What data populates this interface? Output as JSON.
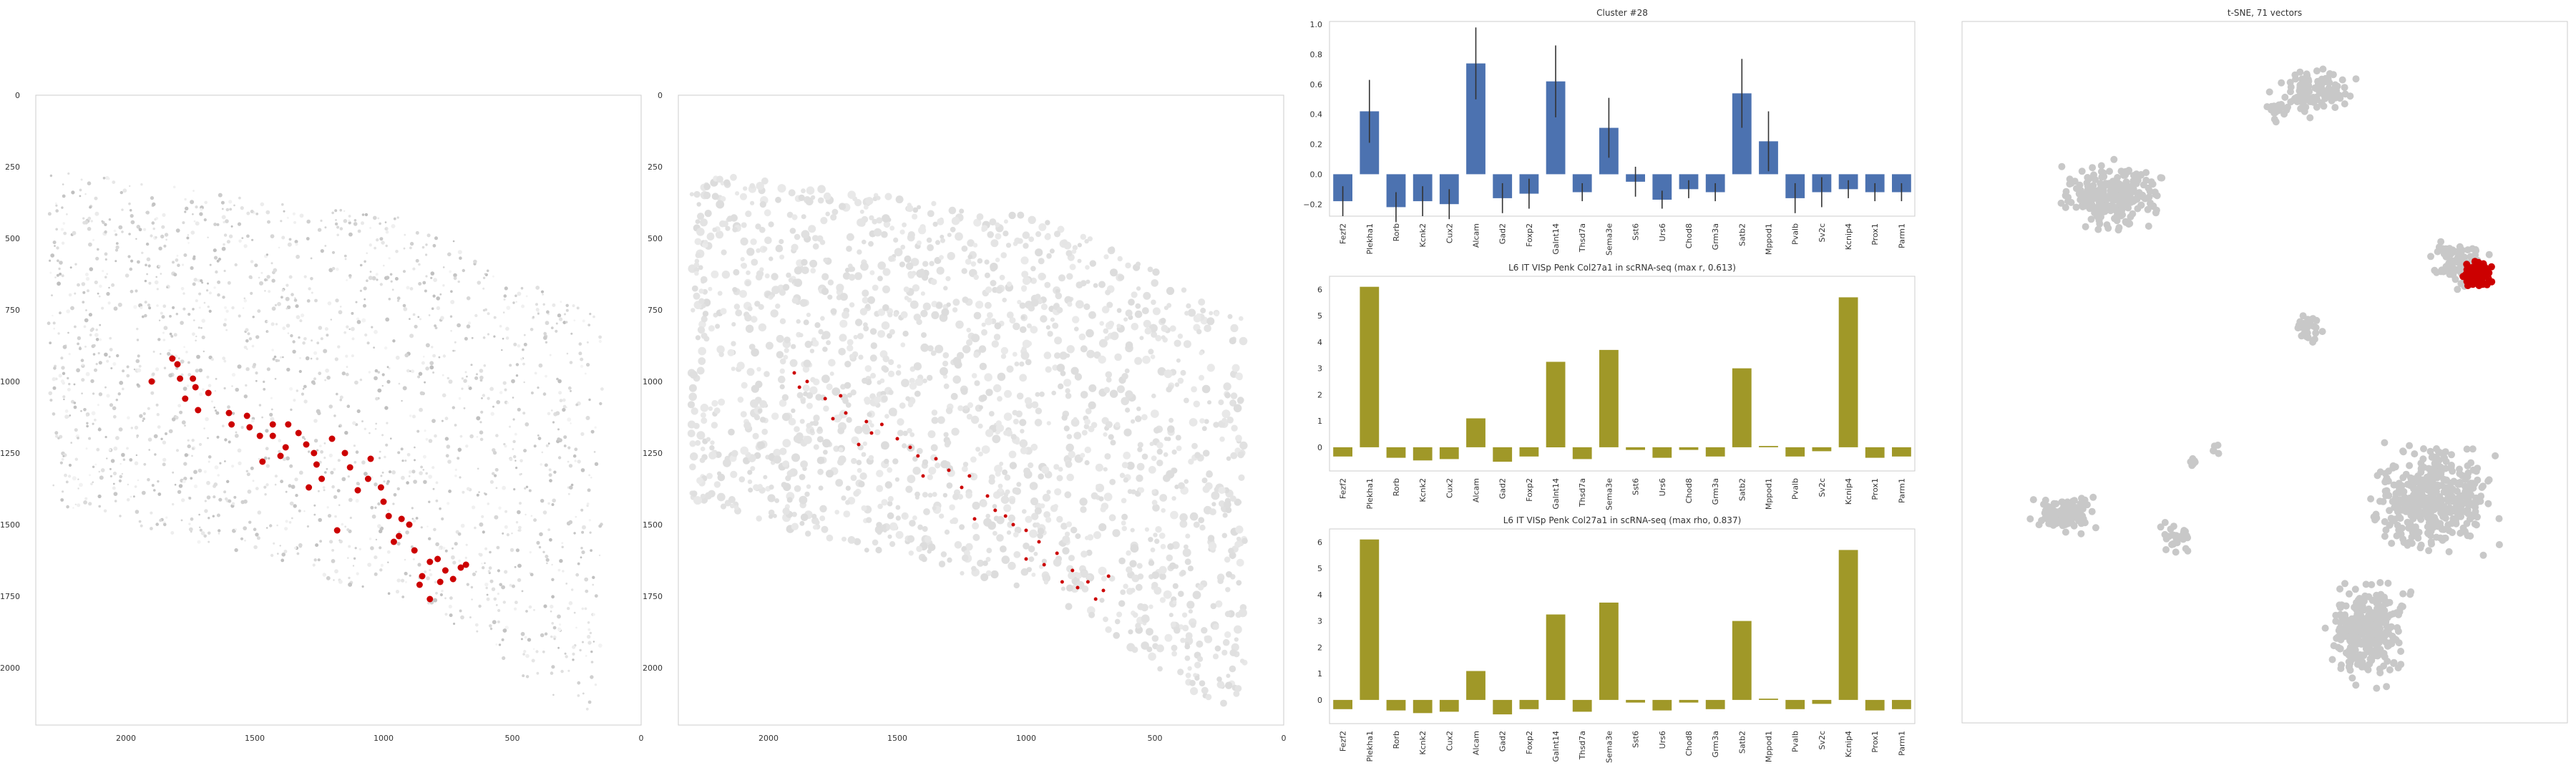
{
  "chart_data": [
    {
      "type": "scatter",
      "id": "tissue-left",
      "title": "",
      "xlim": [
        2350,
        0
      ],
      "ylim": [
        2200,
        0
      ],
      "x_ticks": [
        "2000",
        "1500",
        "1000",
        "500",
        "0"
      ],
      "y_ticks": [
        "0",
        "250",
        "500",
        "750",
        "1000",
        "1250",
        "1500",
        "1750",
        "2000"
      ],
      "x_tick_values": [
        2000,
        1500,
        1000,
        500,
        0
      ],
      "y_tick_values": [
        0,
        250,
        500,
        750,
        1000,
        1250,
        1500,
        1750,
        2000
      ],
      "background_points": "gray shaded cells across tissue section",
      "highlight_color": "#cc0000",
      "highlight_points": [
        [
          1900,
          1000
        ],
        [
          1820,
          920
        ],
        [
          1800,
          940
        ],
        [
          1790,
          990
        ],
        [
          1740,
          990
        ],
        [
          1730,
          1020
        ],
        [
          1770,
          1060
        ],
        [
          1720,
          1100
        ],
        [
          1680,
          1040
        ],
        [
          1600,
          1110
        ],
        [
          1590,
          1150
        ],
        [
          1530,
          1120
        ],
        [
          1520,
          1160
        ],
        [
          1480,
          1190
        ],
        [
          1430,
          1150
        ],
        [
          1430,
          1190
        ],
        [
          1400,
          1260
        ],
        [
          1380,
          1230
        ],
        [
          1370,
          1150
        ],
        [
          1330,
          1180
        ],
        [
          1300,
          1220
        ],
        [
          1270,
          1250
        ],
        [
          1260,
          1290
        ],
        [
          1240,
          1340
        ],
        [
          1200,
          1200
        ],
        [
          1150,
          1250
        ],
        [
          1130,
          1300
        ],
        [
          1100,
          1380
        ],
        [
          1060,
          1340
        ],
        [
          1050,
          1270
        ],
        [
          1010,
          1370
        ],
        [
          1000,
          1420
        ],
        [
          980,
          1470
        ],
        [
          960,
          1560
        ],
        [
          940,
          1540
        ],
        [
          930,
          1480
        ],
        [
          900,
          1500
        ],
        [
          880,
          1590
        ],
        [
          860,
          1710
        ],
        [
          850,
          1680
        ],
        [
          820,
          1630
        ],
        [
          790,
          1620
        ],
        [
          780,
          1700
        ],
        [
          760,
          1660
        ],
        [
          730,
          1690
        ],
        [
          700,
          1650
        ],
        [
          680,
          1640
        ],
        [
          820,
          1760
        ],
        [
          1180,
          1520
        ],
        [
          1290,
          1370
        ],
        [
          1470,
          1280
        ]
      ]
    },
    {
      "type": "scatter",
      "id": "tissue-right",
      "title": "",
      "xlim": [
        2350,
        0
      ],
      "ylim": [
        2200,
        0
      ],
      "x_ticks": [
        "2000",
        "1500",
        "1000",
        "500",
        "0"
      ],
      "y_ticks": [
        "0",
        "250",
        "500",
        "750",
        "1000",
        "1250",
        "1500",
        "1750",
        "2000"
      ],
      "x_tick_values": [
        2000,
        1500,
        1000,
        500,
        0
      ],
      "y_tick_values": [
        0,
        250,
        500,
        750,
        1000,
        1250,
        1500,
        1750,
        2000
      ],
      "background_points": "light gray segmented cells",
      "highlight_color": "#cc0000",
      "highlight_points": [
        [
          1900,
          970
        ],
        [
          1880,
          1020
        ],
        [
          1850,
          1000
        ],
        [
          1780,
          1060
        ],
        [
          1720,
          1050
        ],
        [
          1700,
          1110
        ],
        [
          1620,
          1140
        ],
        [
          1600,
          1180
        ],
        [
          1560,
          1150
        ],
        [
          1500,
          1200
        ],
        [
          1450,
          1230
        ],
        [
          1420,
          1260
        ],
        [
          1350,
          1270
        ],
        [
          1300,
          1310
        ],
        [
          1250,
          1370
        ],
        [
          1220,
          1330
        ],
        [
          1150,
          1400
        ],
        [
          1120,
          1450
        ],
        [
          1080,
          1470
        ],
        [
          1050,
          1500
        ],
        [
          1000,
          1520
        ],
        [
          950,
          1560
        ],
        [
          930,
          1640
        ],
        [
          880,
          1600
        ],
        [
          860,
          1700
        ],
        [
          820,
          1660
        ],
        [
          800,
          1720
        ],
        [
          760,
          1700
        ],
        [
          730,
          1760
        ],
        [
          700,
          1730
        ],
        [
          680,
          1680
        ],
        [
          1000,
          1620
        ],
        [
          1200,
          1480
        ],
        [
          1400,
          1330
        ],
        [
          1650,
          1220
        ],
        [
          1750,
          1130
        ]
      ]
    },
    {
      "type": "bar",
      "id": "cluster-bars",
      "title": "Cluster #28",
      "categories": [
        "Fezf2",
        "Plekha1",
        "Rorb",
        "Kcnk2",
        "Cux2",
        "Alcam",
        "Gad2",
        "Foxp2",
        "Galnt14",
        "Thsd7a",
        "Sema3e",
        "Sst6",
        "Urs6",
        "Chod8",
        "Grm3a",
        "Satb2",
        "Mppod1",
        "Pvalb",
        "Sv2c",
        "Kcnip4",
        "Prox1",
        "Parm1"
      ],
      "values": [
        -0.18,
        0.42,
        -0.22,
        -0.18,
        -0.2,
        0.74,
        -0.16,
        -0.13,
        0.62,
        -0.12,
        0.31,
        -0.05,
        -0.17,
        -0.1,
        -0.12,
        0.54,
        0.22,
        -0.16,
        -0.12,
        -0.1,
        -0.12,
        -0.12
      ],
      "errors": [
        0.1,
        0.21,
        0.1,
        0.1,
        0.1,
        0.24,
        0.1,
        0.1,
        0.24,
        0.06,
        0.2,
        0.1,
        0.06,
        0.06,
        0.06,
        0.23,
        0.2,
        0.1,
        0.1,
        0.06,
        0.06,
        0.06
      ],
      "ylim": [
        -0.28,
        1.02
      ],
      "y_tick_values": [
        -0.2,
        0.0,
        0.2,
        0.4,
        0.6,
        0.8,
        1.0
      ],
      "y_ticks": [
        "−0.2",
        "0.0",
        "0.2",
        "0.4",
        "0.6",
        "0.8",
        "1.0"
      ],
      "color": "#4c72b0",
      "grid": false
    },
    {
      "type": "bar",
      "id": "scrna-max-r",
      "title": "L6 IT VISp Penk Col27a1 in scRNA-seq (max r, 0.613)",
      "categories": [
        "Fezf2",
        "Plekha1",
        "Rorb",
        "Kcnk2",
        "Cux2",
        "Alcam",
        "Gad2",
        "Foxp2",
        "Galnt14",
        "Thsd7a",
        "Sema3e",
        "Sst6",
        "Urs6",
        "Chod8",
        "Grm3a",
        "Satb2",
        "Mppod1",
        "Pvalb",
        "Sv2c",
        "Kcnip4",
        "Prox1",
        "Parm1"
      ],
      "values": [
        -0.35,
        6.1,
        -0.4,
        -0.5,
        -0.45,
        1.1,
        -0.55,
        -0.35,
        3.25,
        -0.45,
        3.7,
        -0.1,
        -0.4,
        -0.1,
        -0.35,
        3.0,
        0.05,
        -0.35,
        -0.15,
        5.7,
        -0.4,
        -0.35
      ],
      "ylim": [
        -0.9,
        6.5
      ],
      "y_tick_values": [
        0,
        1,
        2,
        3,
        4,
        5,
        6
      ],
      "y_ticks": [
        "0",
        "1",
        "2",
        "3",
        "4",
        "5",
        "6"
      ],
      "color": "#a09828",
      "grid": false
    },
    {
      "type": "bar",
      "id": "scrna-max-rho",
      "title": "L6 IT VISp Penk Col27a1 in scRNA-seq (max rho, 0.837)",
      "categories": [
        "Fezf2",
        "Plekha1",
        "Rorb",
        "Kcnk2",
        "Cux2",
        "Alcam",
        "Gad2",
        "Foxp2",
        "Galnt14",
        "Thsd7a",
        "Sema3e",
        "Sst6",
        "Urs6",
        "Chod8",
        "Grm3a",
        "Satb2",
        "Mppod1",
        "Pvalb",
        "Sv2c",
        "Kcnip4",
        "Prox1",
        "Parm1"
      ],
      "values": [
        -0.35,
        6.1,
        -0.4,
        -0.5,
        -0.45,
        1.1,
        -0.55,
        -0.35,
        3.25,
        -0.45,
        3.7,
        -0.1,
        -0.4,
        -0.1,
        -0.35,
        3.0,
        0.05,
        -0.35,
        -0.15,
        5.7,
        -0.4,
        -0.35
      ],
      "ylim": [
        -0.9,
        6.5
      ],
      "y_tick_values": [
        0,
        1,
        2,
        3,
        4,
        5,
        6
      ],
      "y_ticks": [
        "0",
        "1",
        "2",
        "3",
        "4",
        "5",
        "6"
      ],
      "color": "#a09828",
      "grid": false
    },
    {
      "type": "scatter",
      "id": "tsne",
      "title": "t-SNE, 71 vectors",
      "axes_visible": false,
      "background_color": "#c8c8c8",
      "highlight_color": "#cc0000",
      "clusters": [
        {
          "cx": 0.58,
          "cy": 0.1,
          "rx": 0.08,
          "ry": 0.045,
          "n": 120
        },
        {
          "cx": 0.52,
          "cy": 0.13,
          "rx": 0.03,
          "ry": 0.02,
          "n": 15
        },
        {
          "cx": 0.25,
          "cy": 0.25,
          "rx": 0.11,
          "ry": 0.06,
          "n": 260
        },
        {
          "cx": 0.82,
          "cy": 0.35,
          "rx": 0.06,
          "ry": 0.045,
          "n": 90,
          "highlight": true
        },
        {
          "cx": 0.57,
          "cy": 0.44,
          "rx": 0.03,
          "ry": 0.03,
          "n": 30
        },
        {
          "cx": 0.17,
          "cy": 0.7,
          "rx": 0.07,
          "ry": 0.035,
          "n": 110
        },
        {
          "cx": 0.35,
          "cy": 0.74,
          "rx": 0.03,
          "ry": 0.035,
          "n": 30
        },
        {
          "cx": 0.78,
          "cy": 0.68,
          "rx": 0.13,
          "ry": 0.1,
          "n": 420
        },
        {
          "cx": 0.67,
          "cy": 0.87,
          "rx": 0.08,
          "ry": 0.09,
          "n": 330
        },
        {
          "cx": 0.38,
          "cy": 0.63,
          "rx": 0.015,
          "ry": 0.015,
          "n": 6
        },
        {
          "cx": 0.42,
          "cy": 0.61,
          "rx": 0.012,
          "ry": 0.012,
          "n": 5
        }
      ]
    }
  ]
}
